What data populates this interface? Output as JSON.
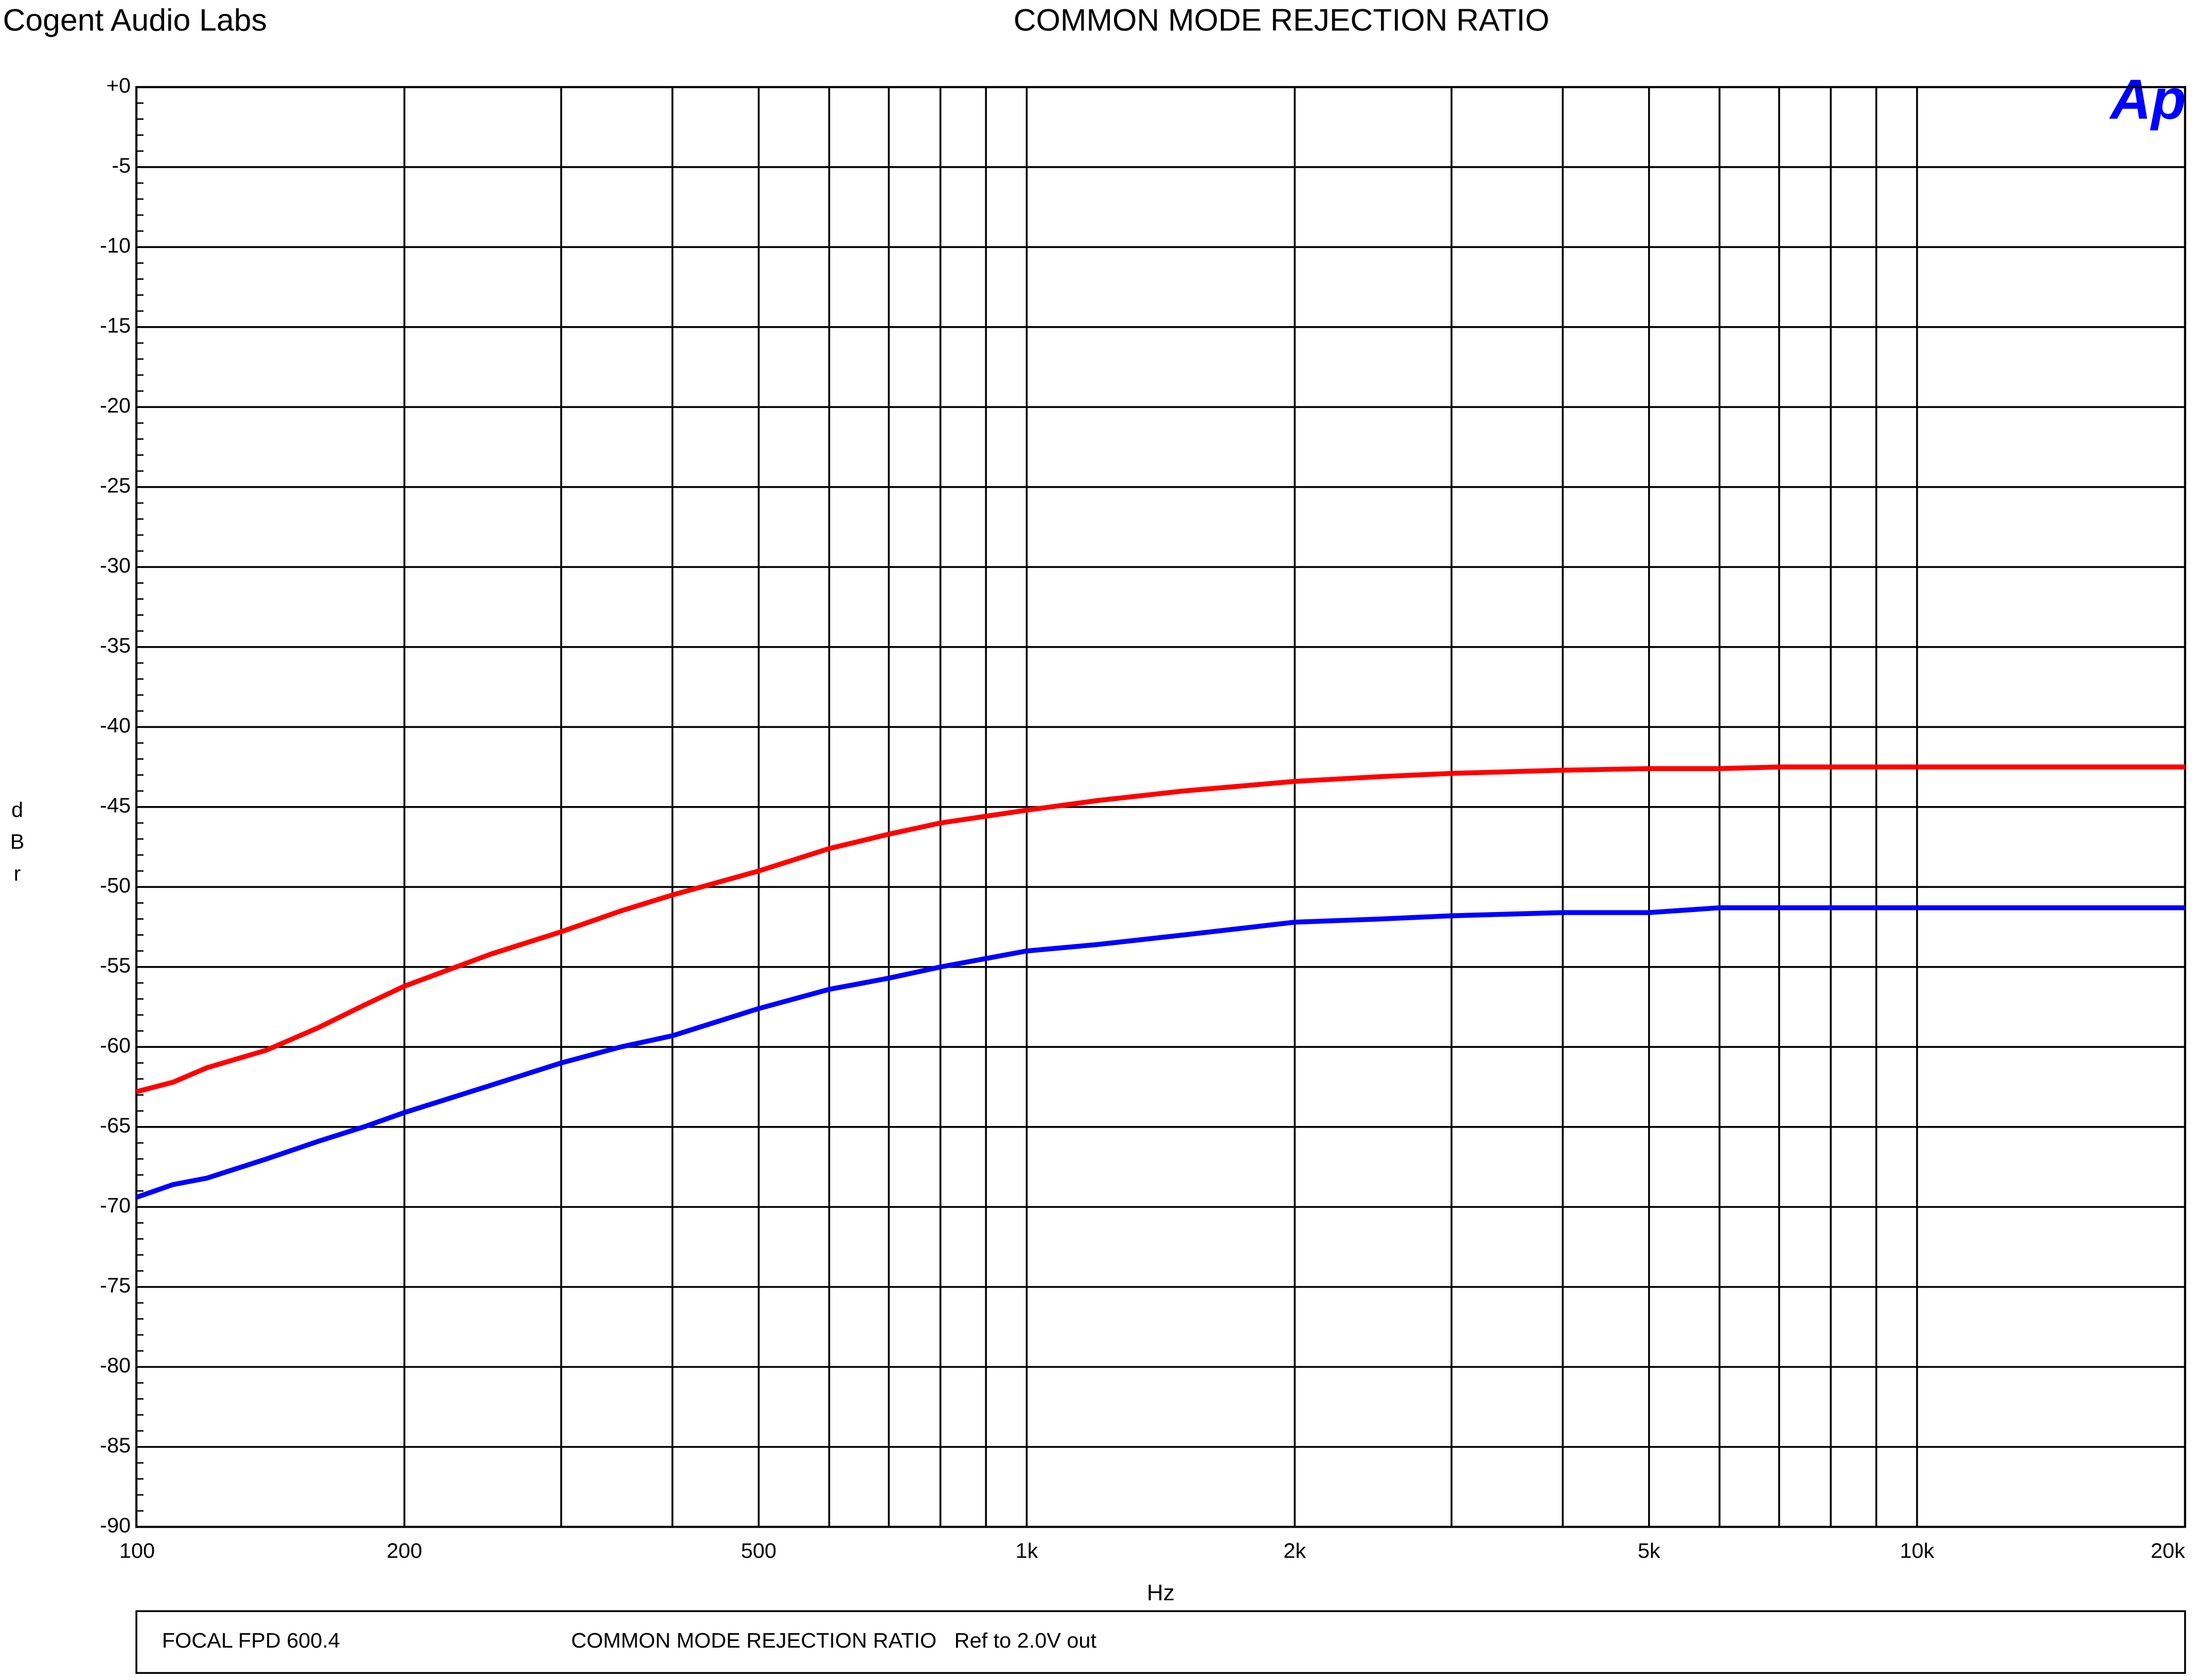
{
  "chart_data": {
    "type": "line",
    "brand": "Cogent Audio Labs",
    "title": "COMMON MODE REJECTION RATIO",
    "logo": "Ap",
    "x_label": "Hz",
    "y_label": "dBr",
    "footer": [
      "FOCAL FPD 600.4",
      "COMMON MODE REJECTION RATIO   Ref to 2.0V out"
    ],
    "x_scale": "log",
    "grid": true,
    "xlim": [
      100,
      20000
    ],
    "ylim": [
      -90,
      0
    ],
    "xticks": [
      100,
      200,
      500,
      {
        "value": 1000,
        "label": "1k"
      },
      {
        "value": 2000,
        "label": "2k"
      },
      {
        "value": 5000,
        "label": "5k"
      },
      {
        "value": 10000,
        "label": "10k"
      },
      {
        "value": 20000,
        "label": "20k"
      }
    ],
    "xgrid": [
      300,
      400,
      600,
      700,
      800,
      900,
      3000,
      4000,
      6000,
      7000,
      8000,
      9000
    ],
    "yticks": [
      {
        "value": 0,
        "label": "+0"
      },
      -5,
      -10,
      -15,
      -20,
      -25,
      -30,
      -35,
      -40,
      -45,
      -50,
      -55,
      -60,
      -65,
      -70,
      -75,
      -80,
      -85,
      -90
    ],
    "x": [
      100,
      110,
      120,
      140,
      160,
      180,
      200,
      250,
      300,
      350,
      400,
      500,
      600,
      700,
      800,
      1000,
      1200,
      1500,
      2000,
      2500,
      3000,
      4000,
      5000,
      6000,
      7000,
      20000
    ],
    "series": [
      {
        "color": "#ff0000",
        "values": [
          -62.8,
          -62.2,
          -61.3,
          -60.2,
          -58.8,
          -57.4,
          -56.2,
          -54.2,
          -52.8,
          -51.5,
          -50.5,
          -49.0,
          -47.6,
          -46.7,
          -46.0,
          -45.2,
          -44.6,
          -44.0,
          -43.4,
          -43.1,
          -42.9,
          -42.7,
          -42.6,
          -42.6,
          -42.5,
          -42.5
        ]
      },
      {
        "color": "#0000ff",
        "values": [
          -69.4,
          -68.6,
          -68.2,
          -67.0,
          -65.9,
          -65.0,
          -64.1,
          -62.4,
          -61.0,
          -60.0,
          -59.3,
          -57.6,
          -56.4,
          -55.7,
          -55.0,
          -54.0,
          -53.6,
          -53.0,
          -52.2,
          -52.0,
          -51.8,
          -51.6,
          -51.6,
          -51.3,
          -51.3,
          -51.3
        ]
      }
    ]
  }
}
